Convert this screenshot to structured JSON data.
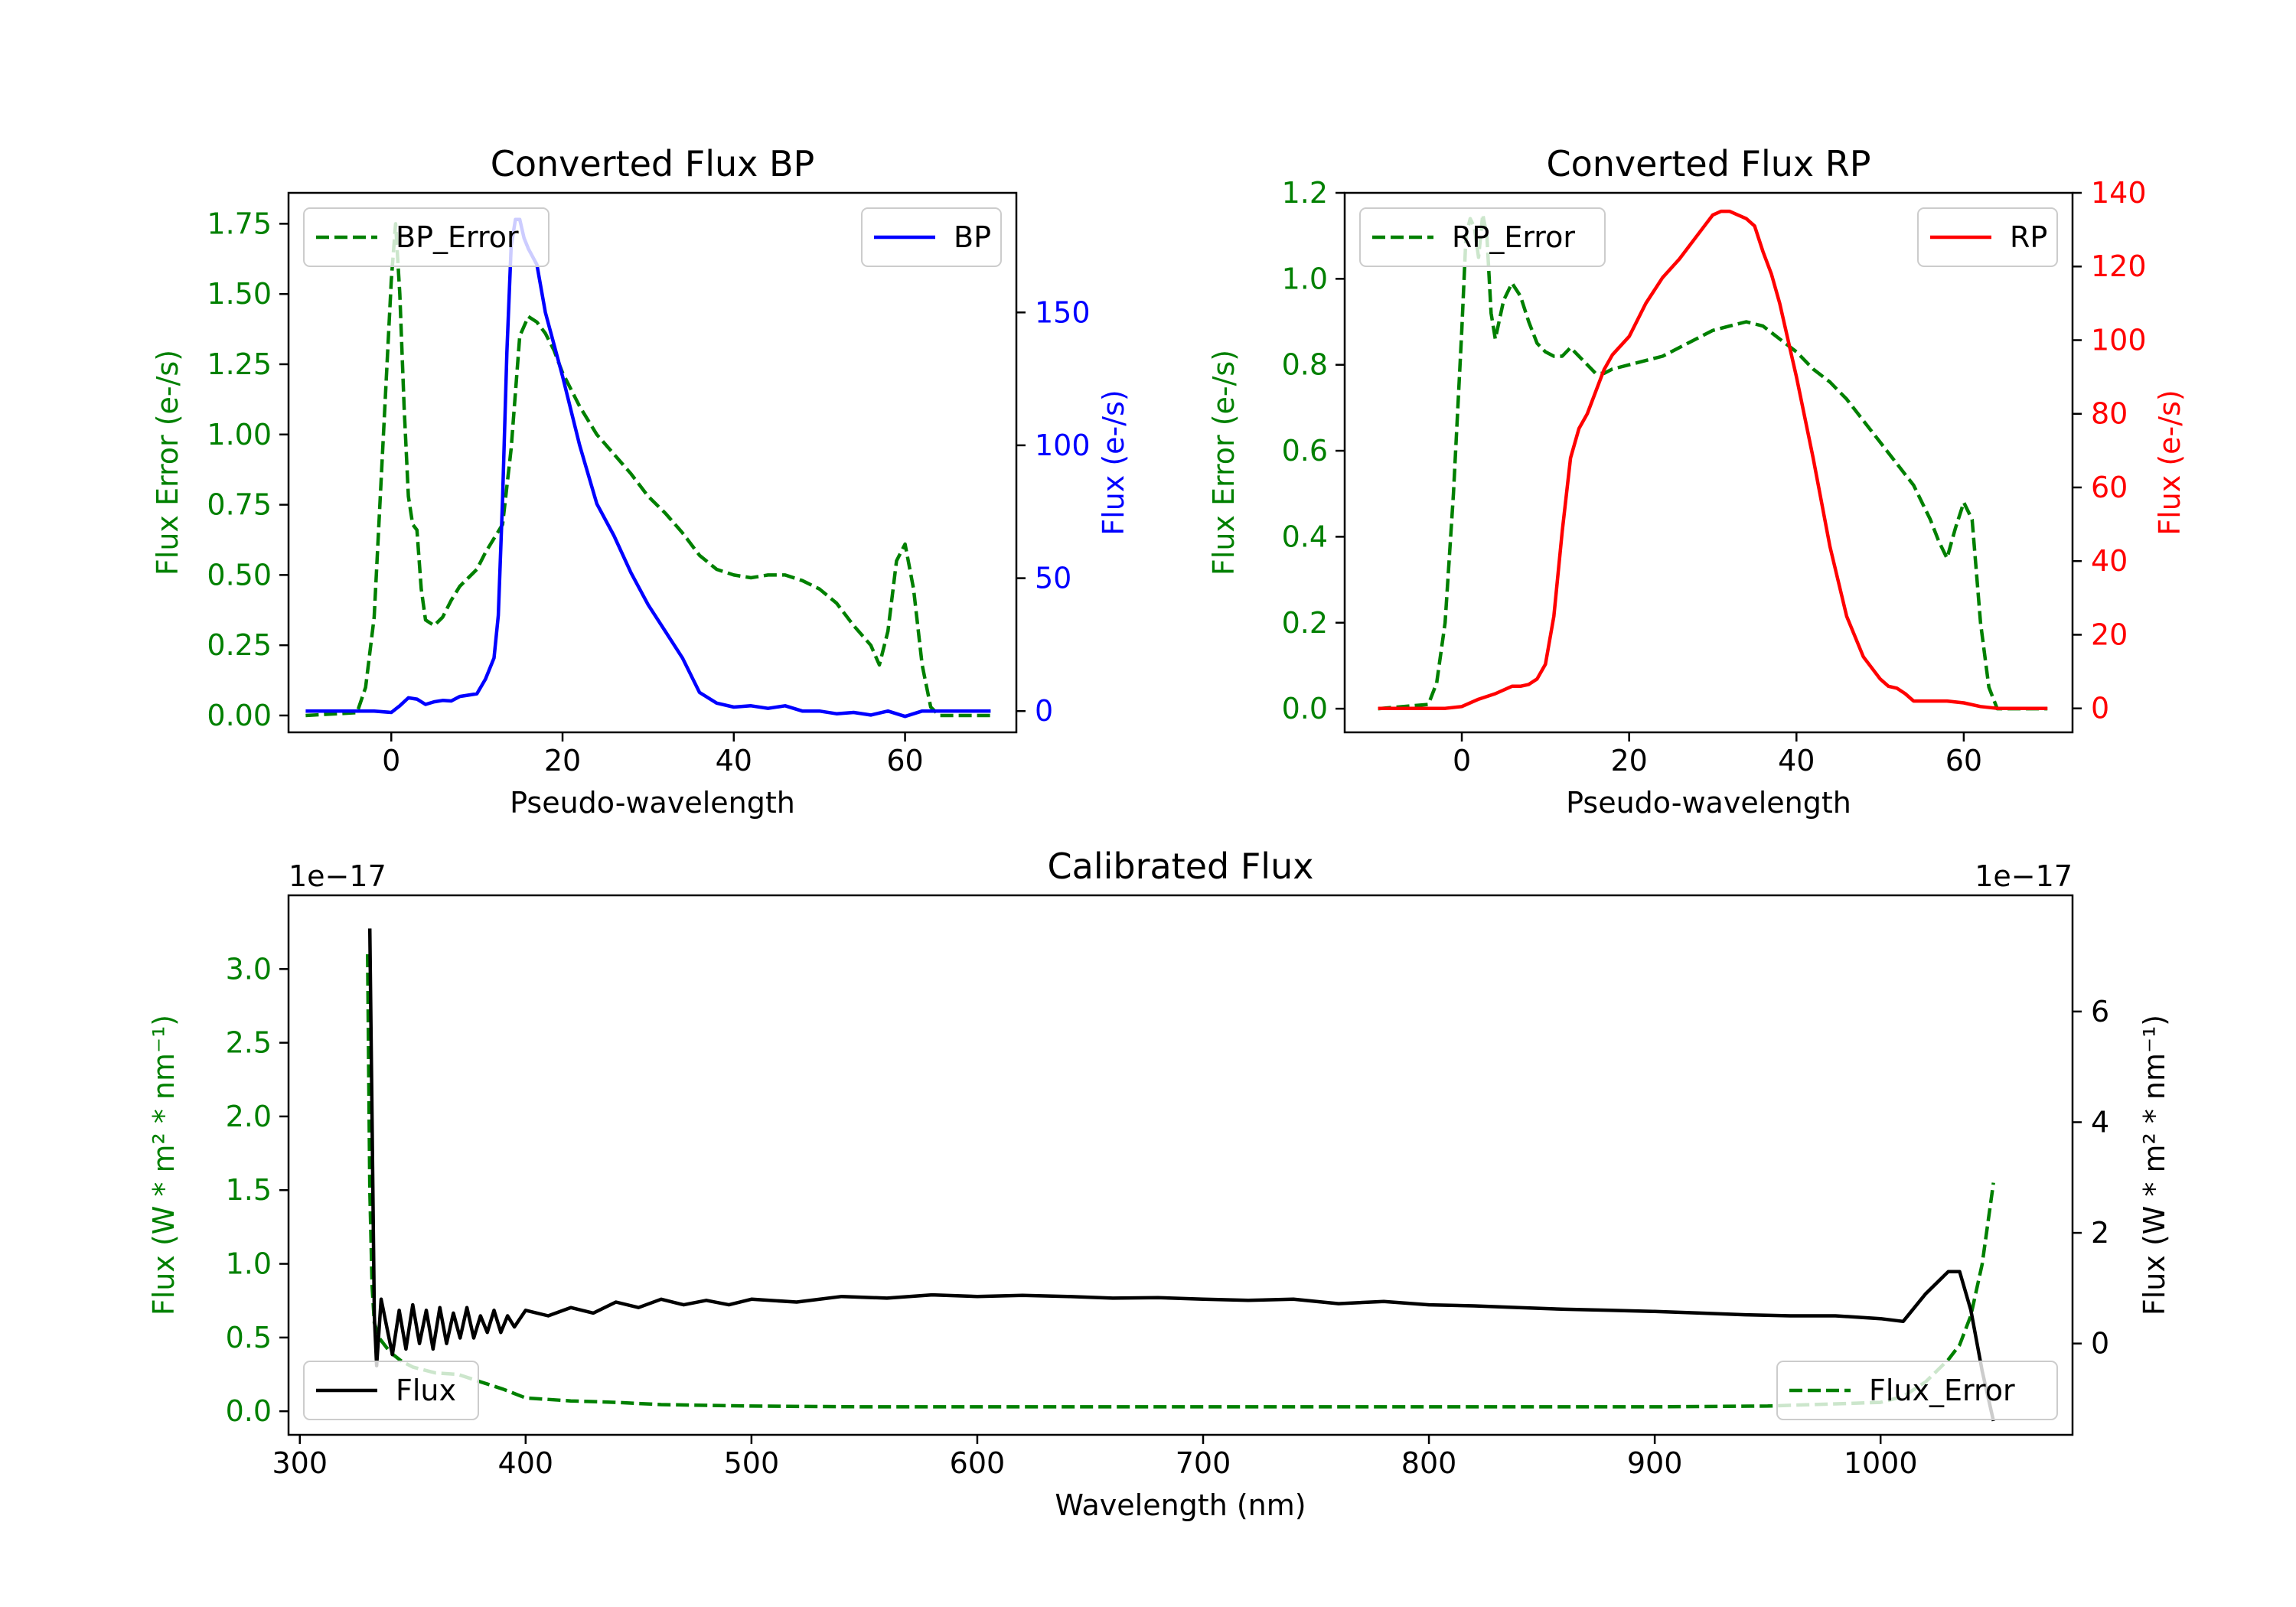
{
  "chart_data": [
    {
      "type": "line",
      "title": "Converted Flux BP",
      "xlabel": "Pseudo-wavelength",
      "ylabel_left": "Flux Error (e-/s)",
      "ylabel_right": "Flux (e-/s)",
      "xlim": [
        -12,
        73
      ],
      "ylim_left": [
        -0.06,
        1.86
      ],
      "ylim_right": [
        -8,
        195
      ],
      "xticks": [
        0,
        20,
        40,
        60
      ],
      "yticks_left": [
        "0.00",
        "0.25",
        "0.50",
        "0.75",
        "1.00",
        "1.25",
        "1.50",
        "1.75"
      ],
      "yticks_right": [
        "0",
        "50",
        "100",
        "150"
      ],
      "legend_left": "BP_Error",
      "legend_right": "BP",
      "color_left": "#008000",
      "color_right": "#0000ff",
      "series": [
        {
          "name": "BP_Error",
          "axis": "left",
          "style": "dashed",
          "x": [
            -10,
            -4,
            -3,
            -2,
            -1,
            0,
            0.5,
            1,
            1.5,
            2,
            2.5,
            3,
            3.5,
            4,
            5,
            6,
            7,
            8,
            9,
            10,
            11,
            12,
            13,
            14,
            15,
            16,
            17,
            18,
            19,
            20,
            22,
            24,
            26,
            28,
            30,
            32,
            34,
            36,
            38,
            40,
            42,
            44,
            46,
            48,
            50,
            52,
            54,
            56,
            57,
            58,
            59,
            60,
            61,
            62,
            63,
            64,
            70
          ],
          "y": [
            0.0,
            0.01,
            0.1,
            0.35,
            0.95,
            1.55,
            1.75,
            1.5,
            1.1,
            0.78,
            0.68,
            0.66,
            0.45,
            0.34,
            0.32,
            0.35,
            0.41,
            0.46,
            0.49,
            0.52,
            0.58,
            0.63,
            0.68,
            0.95,
            1.35,
            1.42,
            1.4,
            1.36,
            1.3,
            1.22,
            1.1,
            1.0,
            0.93,
            0.86,
            0.78,
            0.72,
            0.65,
            0.57,
            0.52,
            0.5,
            0.49,
            0.5,
            0.5,
            0.48,
            0.45,
            0.4,
            0.32,
            0.25,
            0.18,
            0.3,
            0.55,
            0.61,
            0.45,
            0.18,
            0.03,
            0.0,
            0.0
          ]
        },
        {
          "name": "BP",
          "axis": "right",
          "style": "solid",
          "x": [
            -10,
            -5,
            -2,
            0,
            1,
            2,
            3,
            4,
            5,
            6,
            7,
            8,
            9,
            10,
            11,
            12,
            12.5,
            13,
            13.5,
            14,
            14.5,
            15,
            15.5,
            16,
            17,
            18,
            19,
            20,
            22,
            24,
            26,
            28,
            30,
            32,
            34,
            36,
            38,
            40,
            42,
            44,
            46,
            48,
            50,
            52,
            54,
            56,
            58,
            60,
            62,
            64,
            70
          ],
          "y": [
            0,
            0,
            0,
            -0.5,
            2,
            5,
            4.5,
            2.5,
            3.5,
            4,
            3.8,
            5.5,
            6,
            6.5,
            12,
            20,
            36,
            80,
            135,
            175,
            185,
            185,
            178,
            174,
            168,
            150,
            138,
            126,
            100,
            78,
            66,
            52,
            40,
            30,
            20,
            7,
            3,
            1.5,
            2,
            1,
            2,
            0,
            0,
            -1,
            -0.5,
            -1.5,
            0,
            -2,
            0,
            0,
            0
          ]
        }
      ]
    },
    {
      "type": "line",
      "title": "Converted Flux RP",
      "xlabel": "Pseudo-wavelength",
      "ylabel_left": "Flux Error (e-/s)",
      "ylabel_right": "Flux (e-/s)",
      "xlim": [
        -14,
        73
      ],
      "ylim_left": [
        -0.055,
        1.2
      ],
      "ylim_right": [
        -6.5,
        140
      ],
      "xticks": [
        0,
        20,
        40,
        60
      ],
      "yticks_left": [
        "0.0",
        "0.2",
        "0.4",
        "0.6",
        "0.8",
        "1.0",
        "1.2"
      ],
      "yticks_right": [
        "0",
        "20",
        "40",
        "60",
        "80",
        "100",
        "120",
        "140"
      ],
      "legend_left": "RP_Error",
      "legend_right": "RP",
      "color_left": "#008000",
      "color_right": "#ff0000",
      "series": [
        {
          "name": "RP_Error",
          "axis": "left",
          "style": "dashed",
          "x": [
            -10,
            -4,
            -3,
            -2,
            -1,
            0,
            0.5,
            1,
            1.5,
            2,
            2.5,
            3,
            3.5,
            4,
            5,
            6,
            7,
            8,
            9,
            10,
            11,
            12,
            13,
            14,
            15,
            16,
            17,
            18,
            20,
            22,
            24,
            26,
            28,
            30,
            32,
            34,
            36,
            38,
            40,
            42,
            44,
            46,
            48,
            50,
            52,
            54,
            56,
            57,
            58,
            59,
            60,
            61,
            62,
            63,
            64,
            70
          ],
          "y": [
            0.0,
            0.01,
            0.06,
            0.2,
            0.5,
            0.88,
            1.1,
            1.14,
            1.12,
            1.05,
            1.15,
            1.1,
            0.92,
            0.86,
            0.95,
            0.99,
            0.96,
            0.9,
            0.85,
            0.83,
            0.82,
            0.82,
            0.84,
            0.82,
            0.8,
            0.78,
            0.78,
            0.79,
            0.8,
            0.81,
            0.82,
            0.84,
            0.86,
            0.88,
            0.89,
            0.9,
            0.89,
            0.86,
            0.83,
            0.79,
            0.76,
            0.72,
            0.67,
            0.62,
            0.57,
            0.52,
            0.44,
            0.39,
            0.35,
            0.42,
            0.48,
            0.44,
            0.2,
            0.05,
            0.0,
            0.0
          ]
        },
        {
          "name": "RP",
          "axis": "right",
          "style": "solid",
          "x": [
            -10,
            -6,
            -2,
            0,
            2,
            4,
            6,
            7,
            8,
            9,
            10,
            11,
            12,
            13,
            14,
            15,
            16,
            17,
            18,
            20,
            22,
            24,
            26,
            28,
            29,
            30,
            31,
            32,
            33,
            34,
            35,
            36,
            37,
            38,
            40,
            42,
            44,
            46,
            48,
            50,
            51,
            52,
            53,
            54,
            55,
            56,
            58,
            60,
            62,
            64,
            70
          ],
          "y": [
            0,
            0,
            0,
            0.5,
            2.5,
            4,
            6,
            6,
            6.5,
            8,
            12,
            25,
            48,
            68,
            76,
            80,
            86,
            92,
            96,
            101,
            110,
            117,
            122,
            128,
            131,
            134,
            135,
            135,
            134,
            133,
            131,
            124,
            118,
            110,
            90,
            68,
            44,
            25,
            14,
            8,
            6,
            5.5,
            4,
            2,
            2,
            2,
            2,
            1.5,
            0.5,
            0,
            0
          ]
        }
      ]
    },
    {
      "type": "line",
      "title": "Calibrated Flux",
      "xlabel": "Wavelength (nm)",
      "ylabel_left": "Flux (W * m² * nm⁻¹)",
      "ylabel_right": "Flux (W * m² * nm⁻¹)",
      "offset_left": "1e−17",
      "offset_right": "1e−17",
      "xlim": [
        295,
        1085
      ],
      "ylim_left": [
        -0.16,
        3.5
      ],
      "ylim_right": [
        -1.65,
        8.1
      ],
      "xticks": [
        300,
        400,
        500,
        600,
        700,
        800,
        900,
        1000
      ],
      "yticks_left": [
        "0.0",
        "0.5",
        "1.0",
        "1.5",
        "2.0",
        "2.5",
        "3.0"
      ],
      "yticks_right": [
        "0",
        "2",
        "4",
        "6"
      ],
      "legend_left": "Flux",
      "legend_right": "Flux_Error",
      "color_flux": "#000000",
      "color_error": "#008000",
      "series": [
        {
          "name": "Flux_Error",
          "axis": "left",
          "style": "dashed",
          "x": [
            330,
            331,
            332,
            333,
            335,
            340,
            345,
            350,
            360,
            370,
            380,
            390,
            400,
            420,
            440,
            460,
            500,
            550,
            600,
            650,
            700,
            750,
            800,
            850,
            900,
            950,
            1000,
            1010,
            1020,
            1030,
            1035,
            1040,
            1045,
            1050
          ],
          "y": [
            3.1,
            1.5,
            0.85,
            0.6,
            0.5,
            0.4,
            0.34,
            0.3,
            0.26,
            0.25,
            0.2,
            0.15,
            0.09,
            0.07,
            0.06,
            0.045,
            0.035,
            0.03,
            0.03,
            0.03,
            0.03,
            0.03,
            0.03,
            0.03,
            0.03,
            0.035,
            0.06,
            0.1,
            0.2,
            0.35,
            0.45,
            0.65,
            1.0,
            1.55
          ]
        },
        {
          "name": "Flux",
          "axis": "right",
          "style": "solid",
          "x": [
            331,
            332,
            333,
            334,
            336,
            338,
            341,
            344,
            347,
            350,
            353,
            356,
            359,
            362,
            365,
            368,
            371,
            374,
            377,
            380,
            383,
            386,
            389,
            392,
            395,
            400,
            410,
            420,
            430,
            440,
            450,
            460,
            470,
            480,
            490,
            500,
            520,
            540,
            560,
            580,
            600,
            620,
            640,
            660,
            680,
            700,
            720,
            740,
            760,
            780,
            800,
            820,
            840,
            860,
            880,
            900,
            920,
            940,
            960,
            980,
            1000,
            1010,
            1020,
            1030,
            1035,
            1040,
            1045,
            1050
          ],
          "y": [
            7.5,
            4.0,
            0.5,
            -0.4,
            0.8,
            0.4,
            -0.2,
            0.6,
            -0.1,
            0.7,
            0.0,
            0.6,
            -0.1,
            0.65,
            0.0,
            0.55,
            0.1,
            0.65,
            0.1,
            0.5,
            0.2,
            0.6,
            0.2,
            0.5,
            0.3,
            0.6,
            0.5,
            0.65,
            0.55,
            0.75,
            0.65,
            0.8,
            0.7,
            0.78,
            0.7,
            0.8,
            0.75,
            0.85,
            0.82,
            0.88,
            0.85,
            0.87,
            0.85,
            0.82,
            0.83,
            0.8,
            0.78,
            0.8,
            0.72,
            0.76,
            0.7,
            0.68,
            0.65,
            0.62,
            0.6,
            0.58,
            0.55,
            0.52,
            0.5,
            0.5,
            0.45,
            0.4,
            0.9,
            1.3,
            1.3,
            0.6,
            -0.5,
            -1.4
          ]
        }
      ]
    }
  ]
}
